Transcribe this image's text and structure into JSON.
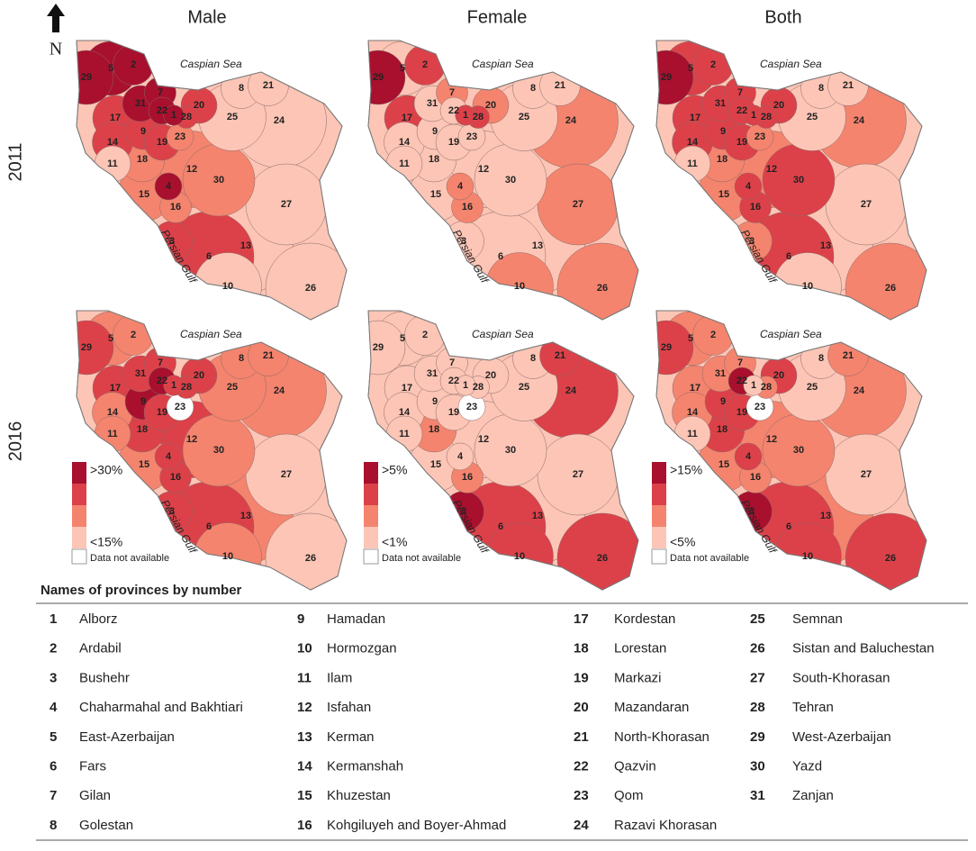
{
  "header": {
    "columns": [
      "Male",
      "Female",
      "Both"
    ],
    "rows": [
      "2011",
      "2016"
    ],
    "north": "N"
  },
  "map_labels": {
    "sea": "Caspian Sea",
    "gulf": "Persian Gulf"
  },
  "legend": {
    "colors": [
      "#fcc5b5",
      "#f4846e",
      "#dc4149",
      "#a8102e"
    ],
    "missing_color": "#ffffff",
    "columns": [
      {
        "high": ">30%",
        "low": "<15%"
      },
      {
        "high": ">5%",
        "low": "<1%"
      },
      {
        "high": ">15%",
        "low": "<5%"
      }
    ],
    "missing": "Data not available"
  },
  "panels": [
    {
      "classes": [
        3,
        3,
        2,
        3,
        3,
        2,
        3,
        0,
        2,
        0,
        0,
        1,
        0,
        2,
        1,
        1,
        2,
        1,
        2,
        2,
        0,
        3,
        1,
        0,
        0,
        0,
        0,
        2,
        3,
        1,
        3
      ]
    },
    {
      "classes": [
        2,
        2,
        0,
        1,
        0,
        0,
        1,
        0,
        0,
        1,
        0,
        0,
        0,
        0,
        0,
        1,
        2,
        0,
        0,
        1,
        0,
        0,
        0,
        1,
        0,
        1,
        1,
        2,
        3,
        0,
        0
      ]
    },
    {
      "classes": [
        2,
        2,
        1,
        2,
        2,
        2,
        2,
        0,
        2,
        0,
        0,
        1,
        0,
        2,
        1,
        2,
        2,
        1,
        2,
        2,
        0,
        2,
        1,
        1,
        0,
        1,
        0,
        2,
        3,
        2,
        2
      ]
    },
    {
      "classes": [
        2,
        1,
        2,
        2,
        1,
        2,
        2,
        1,
        3,
        1,
        1,
        2,
        1,
        1,
        1,
        2,
        2,
        2,
        2,
        2,
        1,
        3,
        null,
        1,
        1,
        0,
        0,
        2,
        2,
        1,
        2
      ]
    },
    {
      "classes": [
        0,
        0,
        3,
        0,
        0,
        2,
        0,
        0,
        0,
        2,
        0,
        0,
        0,
        0,
        0,
        1,
        0,
        1,
        0,
        0,
        2,
        0,
        null,
        2,
        0,
        2,
        0,
        0,
        0,
        0,
        0
      ]
    },
    {
      "classes": [
        0,
        1,
        3,
        2,
        1,
        2,
        1,
        0,
        2,
        2,
        0,
        1,
        1,
        1,
        1,
        1,
        1,
        2,
        2,
        2,
        1,
        3,
        null,
        1,
        0,
        2,
        0,
        1,
        2,
        1,
        1
      ]
    }
  ],
  "provinces": {
    "title": "Names of provinces by number",
    "items": [
      {
        "number": "1",
        "name": "Alborz"
      },
      {
        "number": "2",
        "name": "Ardabil"
      },
      {
        "number": "3",
        "name": "Bushehr"
      },
      {
        "number": "4",
        "name": "Chaharmahal and Bakhtiari"
      },
      {
        "number": "5",
        "name": "East-Azerbaijan"
      },
      {
        "number": "6",
        "name": "Fars"
      },
      {
        "number": "7",
        "name": "Gilan"
      },
      {
        "number": "8",
        "name": "Golestan"
      },
      {
        "number": "9",
        "name": "Hamadan"
      },
      {
        "number": "10",
        "name": "Hormozgan"
      },
      {
        "number": "11",
        "name": "Ilam"
      },
      {
        "number": "12",
        "name": "Isfahan"
      },
      {
        "number": "13",
        "name": "Kerman"
      },
      {
        "number": "14",
        "name": "Kermanshah"
      },
      {
        "number": "15",
        "name": "Khuzestan"
      },
      {
        "number": "16",
        "name": "Kohgiluyeh and Boyer-Ahmad"
      },
      {
        "number": "17",
        "name": "Kordestan"
      },
      {
        "number": "18",
        "name": "Lorestan"
      },
      {
        "number": "19",
        "name": "Markazi"
      },
      {
        "number": "20",
        "name": "Mazandaran"
      },
      {
        "number": "21",
        "name": "North-Khorasan"
      },
      {
        "number": "22",
        "name": "Qazvin"
      },
      {
        "number": "23",
        "name": "Qom"
      },
      {
        "number": "24",
        "name": "Razavi Khorasan"
      },
      {
        "number": "25",
        "name": "Semnan"
      },
      {
        "number": "26",
        "name": "Sistan and Baluchestan"
      },
      {
        "number": "27",
        "name": "South-Khorasan"
      },
      {
        "number": "28",
        "name": "Tehran"
      },
      {
        "number": "29",
        "name": "West-Azerbaijan"
      },
      {
        "number": "30",
        "name": "Yazd"
      },
      {
        "number": "31",
        "name": "Zanjan"
      }
    ]
  }
}
